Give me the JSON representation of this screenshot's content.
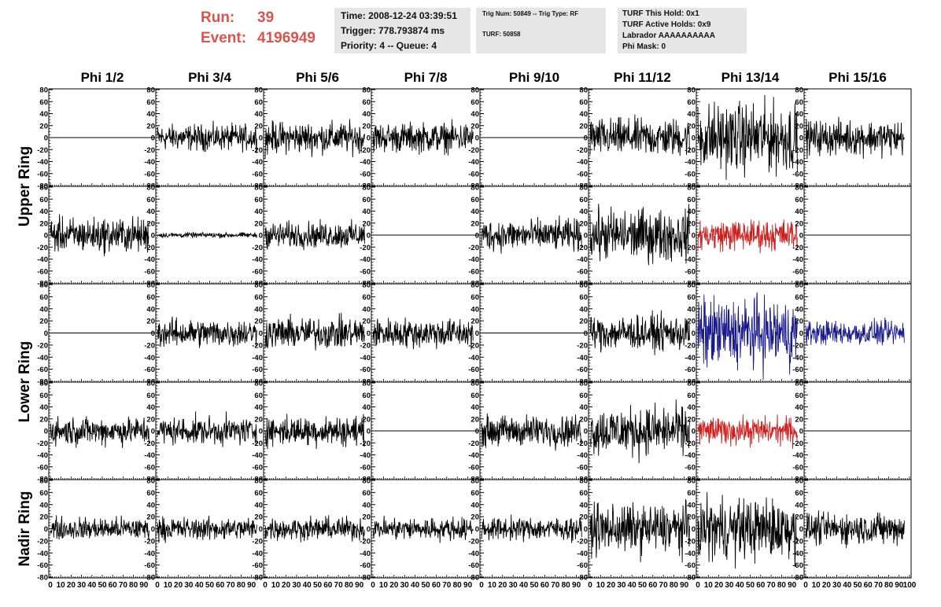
{
  "header": {
    "run_label": "Run:",
    "run_value": "39",
    "event_label": "Event:",
    "event_value": "4196949",
    "info_box_1": [
      "Time: 2008-12-24 03:39:51",
      "Trigger: 778.793874 ms",
      "Priority: 4 -- Queue: 4"
    ],
    "info_box_2": [
      "Trig Num: 50849 -- Trig Type: RF",
      "TURF: 50858"
    ],
    "info_box_3": [
      "TURF This Hold: 0x1",
      "TURF Active Holds: 0x9",
      "Labrador AAAAAAAAAA",
      "Phi Mask: 0"
    ]
  },
  "chart_data": {
    "type": "line",
    "grid": false,
    "columns": [
      "Phi 1/2",
      "Phi 3/4",
      "Phi 5/6",
      "Phi 7/8",
      "Phi 9/10",
      "Phi 11/12",
      "Phi 13/14",
      "Phi 15/16"
    ],
    "ring_labels": [
      "Upper Ring",
      "Lower Ring",
      "Nadir Ring"
    ],
    "rows_per_ring": [
      2,
      2,
      1
    ],
    "ylim": [
      -80,
      80
    ],
    "yticks": [
      -80,
      -60,
      -40,
      -20,
      0,
      20,
      40,
      60,
      80
    ],
    "xlim": [
      0,
      100
    ],
    "xticks": [
      0,
      10,
      20,
      30,
      40,
      50,
      60,
      70,
      80,
      90,
      100
    ],
    "colors": {
      "default": "#000000",
      "red": "#cc2020",
      "blue": "#1a1a8c"
    },
    "panel_rows": [
      {
        "panels": [
          {
            "amp": 0,
            "color": "default"
          },
          {
            "amp": 15,
            "color": "default"
          },
          {
            "amp": 18,
            "color": "default"
          },
          {
            "amp": 17,
            "color": "default"
          },
          {
            "amp": 0,
            "color": "default"
          },
          {
            "amp": 22,
            "color": "default"
          },
          {
            "amp": 40,
            "color": "default"
          },
          {
            "amp": 20,
            "color": "default"
          }
        ]
      },
      {
        "panels": [
          {
            "amp": 20,
            "color": "default"
          },
          {
            "amp": 3,
            "color": "default"
          },
          {
            "amp": 15,
            "color": "default"
          },
          {
            "amp": 0,
            "color": "default"
          },
          {
            "amp": 18,
            "color": "default"
          },
          {
            "amp": 30,
            "color": "default"
          },
          {
            "amp": 18,
            "color": "red"
          },
          {
            "amp": 0,
            "color": "default"
          }
        ]
      },
      {
        "panels": [
          {
            "amp": 0,
            "color": "default"
          },
          {
            "amp": 16,
            "color": "default"
          },
          {
            "amp": 18,
            "color": "default"
          },
          {
            "amp": 17,
            "color": "default"
          },
          {
            "amp": 0,
            "color": "default"
          },
          {
            "amp": 20,
            "color": "default"
          },
          {
            "amp": 40,
            "color": "blue"
          },
          {
            "amp": 14,
            "color": "blue"
          }
        ]
      },
      {
        "panels": [
          {
            "amp": 16,
            "color": "default"
          },
          {
            "amp": 16,
            "color": "default"
          },
          {
            "amp": 17,
            "color": "default"
          },
          {
            "amp": 0,
            "color": "default"
          },
          {
            "amp": 18,
            "color": "default"
          },
          {
            "amp": 28,
            "color": "default"
          },
          {
            "amp": 16,
            "color": "red"
          },
          {
            "amp": 0,
            "color": "default"
          }
        ]
      },
      {
        "panels": [
          {
            "amp": 13,
            "color": "default"
          },
          {
            "amp": 13,
            "color": "default"
          },
          {
            "amp": 13,
            "color": "default"
          },
          {
            "amp": 13,
            "color": "default"
          },
          {
            "amp": 13,
            "color": "default"
          },
          {
            "amp": 28,
            "color": "default"
          },
          {
            "amp": 35,
            "color": "default"
          },
          {
            "amp": 18,
            "color": "default"
          }
        ]
      }
    ]
  }
}
